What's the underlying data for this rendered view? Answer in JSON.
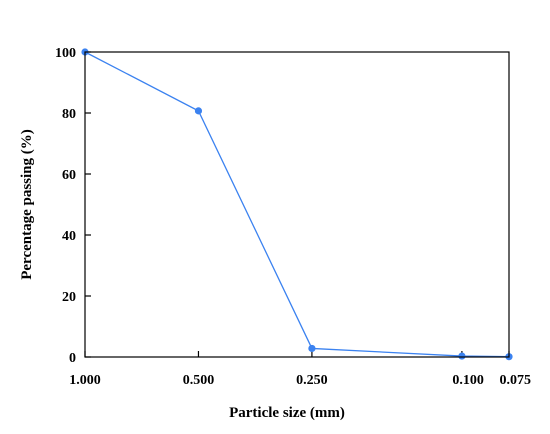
{
  "chart_data": {
    "type": "line",
    "title": "",
    "xlabel": "Particle size (mm)",
    "ylabel": "Percentage passing (%)",
    "x_scale": "log",
    "x_reversed": true,
    "xlim": [
      1.0,
      0.075
    ],
    "ylim": [
      0,
      100
    ],
    "x_ticks": [
      {
        "value": 1.0,
        "label": "1.000"
      },
      {
        "value": 0.5,
        "label": "0.500"
      },
      {
        "value": 0.25,
        "label": "0.250"
      },
      {
        "value": 0.1,
        "label": "0.100"
      },
      {
        "value": 0.075,
        "label": "0.075"
      }
    ],
    "y_ticks": [
      {
        "value": 0,
        "label": "0"
      },
      {
        "value": 20,
        "label": "20"
      },
      {
        "value": 40,
        "label": "40"
      },
      {
        "value": 60,
        "label": "60"
      },
      {
        "value": 80,
        "label": "80"
      },
      {
        "value": 100,
        "label": "100"
      }
    ],
    "grid": false,
    "legend": "none",
    "series": [
      {
        "color": "#3b82f0",
        "points": [
          {
            "x": 1.0,
            "y": 100
          },
          {
            "x": 0.5,
            "y": 80.7
          },
          {
            "x": 0.25,
            "y": 2.8
          },
          {
            "x": 0.1,
            "y": 0.3
          },
          {
            "x": 0.075,
            "y": 0.1
          }
        ]
      }
    ]
  }
}
